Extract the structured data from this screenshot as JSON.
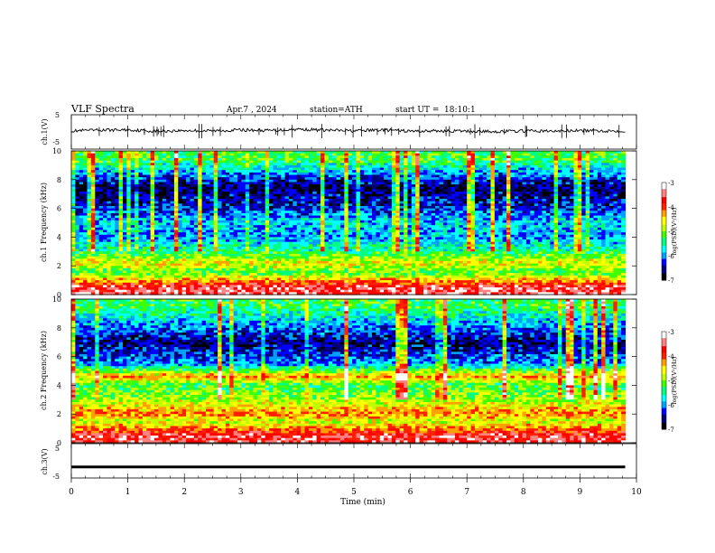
{
  "header": {
    "title": "VLF Spectra",
    "date": "Apr.7 , 2024",
    "station": "station=ATH",
    "start_label": "start UT =",
    "start_time": "18:10:1"
  },
  "chart_data": [
    {
      "type": "line",
      "panel": "ch1-waveform",
      "ylabel": "ch.1(V)",
      "ylim": [
        -5,
        5
      ],
      "y_ticks": [
        "5",
        "-5"
      ],
      "xlim": [
        0,
        10
      ],
      "series": [
        {
          "x": [
            0,
            0.5,
            1,
            1.5,
            2,
            2.5,
            3,
            3.5,
            4,
            4.5,
            5,
            5.5,
            6,
            6.5,
            7,
            7.5,
            8,
            8.5,
            9,
            9.5,
            9.8
          ],
          "values": [
            0.3,
            0.5,
            0.6,
            0.2,
            0.4,
            0.3,
            0.6,
            0.4,
            0.8,
            0.5,
            0.3,
            0.6,
            0.2,
            0.3,
            0.2,
            0.1,
            0.3,
            0.2,
            0.4,
            0.3,
            0.3
          ]
        }
      ]
    },
    {
      "type": "heatmap",
      "panel": "ch1-spectrogram",
      "ylabel": "ch.1 Frequency (kHz)",
      "ylim": [
        0,
        10
      ],
      "y_ticks": [
        "0",
        "2",
        "4",
        "6",
        "8",
        "10"
      ],
      "xlim": [
        0,
        10
      ],
      "colorbar": {
        "label": "log(PSD)(V²/Hz)",
        "range": [
          -7,
          -3
        ],
        "ticks": [
          "-3",
          "-4",
          "-5",
          "-6",
          "-7"
        ]
      },
      "approx_log_psd_by_freq_khz": [
        {
          "f": 0.5,
          "v": -3.5
        },
        {
          "f": 1.5,
          "v": -5.2
        },
        {
          "f": 2.2,
          "v": -4.6
        },
        {
          "f": 3,
          "v": -5.4
        },
        {
          "f": 4,
          "v": -6.0
        },
        {
          "f": 5,
          "v": -5.8
        },
        {
          "f": 6,
          "v": -6.3
        },
        {
          "f": 7.5,
          "v": -6.7
        },
        {
          "f": 9.5,
          "v": -5.2
        }
      ]
    },
    {
      "type": "heatmap",
      "panel": "ch2-spectrogram",
      "ylabel": "ch.2 Frequency (kHz)",
      "ylim": [
        0,
        10
      ],
      "y_ticks": [
        "0",
        "2",
        "4",
        "6",
        "8",
        "10"
      ],
      "xlim": [
        0,
        10
      ],
      "colorbar": {
        "label": "log(PSD)(V²/Hz)",
        "range": [
          -7,
          -3
        ],
        "ticks": [
          "-3",
          "-4",
          "-5",
          "-6",
          "-7"
        ]
      },
      "approx_log_psd_by_freq_khz": [
        {
          "f": 0.5,
          "v": -3.6
        },
        {
          "f": 1.5,
          "v": -4.8
        },
        {
          "f": 2,
          "v": -4.2
        },
        {
          "f": 3,
          "v": -4.9
        },
        {
          "f": 4,
          "v": -5.3
        },
        {
          "f": 4.6,
          "v": -4.3
        },
        {
          "f": 5.5,
          "v": -6.0
        },
        {
          "f": 7,
          "v": -6.6
        },
        {
          "f": 9.5,
          "v": -5.3
        }
      ]
    },
    {
      "type": "line",
      "panel": "ch3-waveform",
      "ylabel": "ch.3(V)",
      "ylim": [
        -5,
        5
      ],
      "y_ticks": [
        "5",
        "-5"
      ],
      "xlim": [
        0,
        10
      ],
      "series": [
        {
          "x": [
            0,
            9.8
          ],
          "values": [
            -1.8,
            -1.8
          ]
        }
      ]
    }
  ],
  "x_axis": {
    "label": "Time (min)",
    "ticks": [
      "0",
      "1",
      "2",
      "3",
      "4",
      "5",
      "6",
      "7",
      "8",
      "9",
      "10"
    ]
  },
  "colors": {
    "background": "#ffffff",
    "waveform": "#000000",
    "colormap": [
      "#000000",
      "#00007a",
      "#0000ff",
      "#00a0ff",
      "#00ffff",
      "#00ff80",
      "#40ff00",
      "#c0ff00",
      "#ffff00",
      "#ffa000",
      "#ff2000",
      "#ff0000",
      "#ff8080",
      "#ffffff"
    ]
  }
}
